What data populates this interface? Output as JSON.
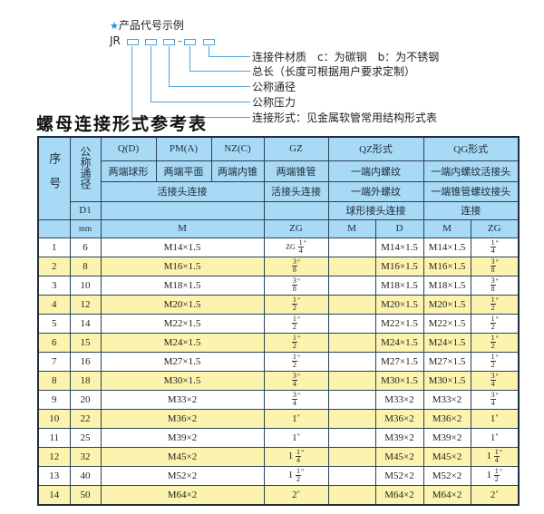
{
  "legend": {
    "title": "产品代号示例",
    "prefix": "JR",
    "items": [
      "连接件材质　c：为碳钢　b：为不锈钢",
      "总长（长度可根据用户要求定制）",
      "公称通径",
      "公称压力",
      "连接形式：见金属软管常用结构形式表"
    ]
  },
  "table_title": "螺母连接形式参考表",
  "header": {
    "seq": "序号",
    "dn": "公称通径",
    "d1": "D1",
    "mm": "mm",
    "types": [
      "Q(D)",
      "PM(A)",
      "NZ(C)",
      "GZ",
      "QZ形式",
      "QG形式"
    ],
    "desc": [
      "两端球形",
      "两端平面",
      "两端内锥",
      "两端锥管",
      "一端内螺纹",
      "一端内螺纹活接头"
    ],
    "conn": [
      "活接头连接",
      "活接头连接",
      "一端外螺纹",
      "一端锥管螺纹接头"
    ],
    "conn2": [
      "球形接头连接",
      "连接"
    ],
    "units": [
      "M",
      "ZG",
      "M",
      "D",
      "M",
      "ZG"
    ]
  },
  "rows": [
    {
      "seq": "1",
      "d1": "6",
      "m": "M14×1.5",
      "zg": {
        "pre": "ZG",
        "whole": "",
        "num": "1",
        "den": "4"
      },
      "qz_m": "",
      "qz_d": "M14×1.5",
      "qg_m": "M14×1.5",
      "qg_zg": {
        "whole": "",
        "num": "1",
        "den": "4"
      }
    },
    {
      "seq": "2",
      "d1": "8",
      "m": "M16×1.5",
      "zg": {
        "whole": "",
        "num": "3",
        "den": "8"
      },
      "qz_m": "",
      "qz_d": "M16×1.5",
      "qg_m": "M16×1.5",
      "qg_zg": {
        "whole": "",
        "num": "3",
        "den": "8"
      }
    },
    {
      "seq": "3",
      "d1": "10",
      "m": "M18×1.5",
      "zg": {
        "whole": "",
        "num": "3",
        "den": "8"
      },
      "qz_m": "",
      "qz_d": "M18×1.5",
      "qg_m": "M18×1.5",
      "qg_zg": {
        "whole": "",
        "num": "3",
        "den": "8"
      }
    },
    {
      "seq": "4",
      "d1": "12",
      "m": "M20×1.5",
      "zg": {
        "whole": "",
        "num": "1",
        "den": "2"
      },
      "qz_m": "",
      "qz_d": "M20×1.5",
      "qg_m": "M20×1.5",
      "qg_zg": {
        "whole": "",
        "num": "1",
        "den": "2"
      }
    },
    {
      "seq": "5",
      "d1": "14",
      "m": "M22×1.5",
      "zg": {
        "whole": "",
        "num": "1",
        "den": "2"
      },
      "qz_m": "",
      "qz_d": "M22×1.5",
      "qg_m": "M22×1.5",
      "qg_zg": {
        "whole": "",
        "num": "1",
        "den": "2"
      }
    },
    {
      "seq": "6",
      "d1": "15",
      "m": "M24×1.5",
      "zg": {
        "whole": "",
        "num": "1",
        "den": "2"
      },
      "qz_m": "",
      "qz_d": "M24×1.5",
      "qg_m": "M24×1.5",
      "qg_zg": {
        "whole": "",
        "num": "1",
        "den": "2"
      }
    },
    {
      "seq": "7",
      "d1": "16",
      "m": "M27×1.5",
      "zg": {
        "whole": "",
        "num": "1",
        "den": "2"
      },
      "qz_m": "",
      "qz_d": "M27×1.5",
      "qg_m": "M27×1.5",
      "qg_zg": {
        "whole": "",
        "num": "1",
        "den": "2"
      }
    },
    {
      "seq": "8",
      "d1": "18",
      "m": "M30×1.5",
      "zg": {
        "whole": "",
        "num": "3",
        "den": "4"
      },
      "qz_m": "",
      "qz_d": "M30×1.5",
      "qg_m": "M30×1.5",
      "qg_zg": {
        "whole": "",
        "num": "3",
        "den": "4"
      }
    },
    {
      "seq": "9",
      "d1": "20",
      "m": "M33×2",
      "zg": {
        "whole": "",
        "num": "3",
        "den": "4"
      },
      "qz_m": "",
      "qz_d": "M33×2",
      "qg_m": "M33×2",
      "qg_zg": {
        "whole": "",
        "num": "3",
        "den": "4"
      }
    },
    {
      "seq": "10",
      "d1": "22",
      "m": "M36×2",
      "zg": {
        "whole": "1",
        "num": "",
        "den": ""
      },
      "qz_m": "",
      "qz_d": "M36×2",
      "qg_m": "M36×2",
      "qg_zg": {
        "whole": "1",
        "num": "",
        "den": ""
      }
    },
    {
      "seq": "11",
      "d1": "25",
      "m": "M39×2",
      "zg": {
        "whole": "1",
        "num": "",
        "den": ""
      },
      "qz_m": "",
      "qz_d": "M39×2",
      "qg_m": "M39×2",
      "qg_zg": {
        "whole": "1",
        "num": "",
        "den": ""
      }
    },
    {
      "seq": "12",
      "d1": "32",
      "m": "M45×2",
      "zg": {
        "whole": "1",
        "num": "1",
        "den": "4"
      },
      "qz_m": "",
      "qz_d": "M45×2",
      "qg_m": "M45×2",
      "qg_zg": {
        "whole": "1",
        "num": "1",
        "den": "4"
      }
    },
    {
      "seq": "13",
      "d1": "40",
      "m": "M52×2",
      "zg": {
        "whole": "1",
        "num": "1",
        "den": "2"
      },
      "qz_m": "",
      "qz_d": "M52×2",
      "qg_m": "M52×2",
      "qg_zg": {
        "whole": "1",
        "num": "1",
        "den": "2"
      }
    },
    {
      "seq": "14",
      "d1": "50",
      "m": "M64×2",
      "zg": {
        "whole": "2",
        "num": "",
        "den": ""
      },
      "qz_m": "",
      "qz_d": "M64×2",
      "qg_m": "M64×2",
      "qg_zg": {
        "whole": "2",
        "num": "",
        "den": ""
      }
    }
  ],
  "inch_mark": "\"",
  "colors": {
    "header_bg": "#a8d9f5",
    "alt_row": "#fcf4ae",
    "leader": "#4aa5dd"
  }
}
